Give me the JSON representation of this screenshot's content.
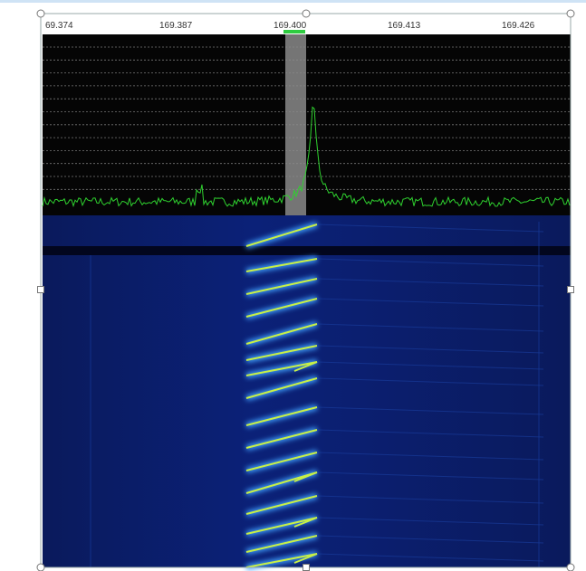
{
  "frequency_axis": {
    "labels": [
      "69.374",
      "169.387",
      "169.400",
      "169.413",
      "169.426"
    ]
  }
}
